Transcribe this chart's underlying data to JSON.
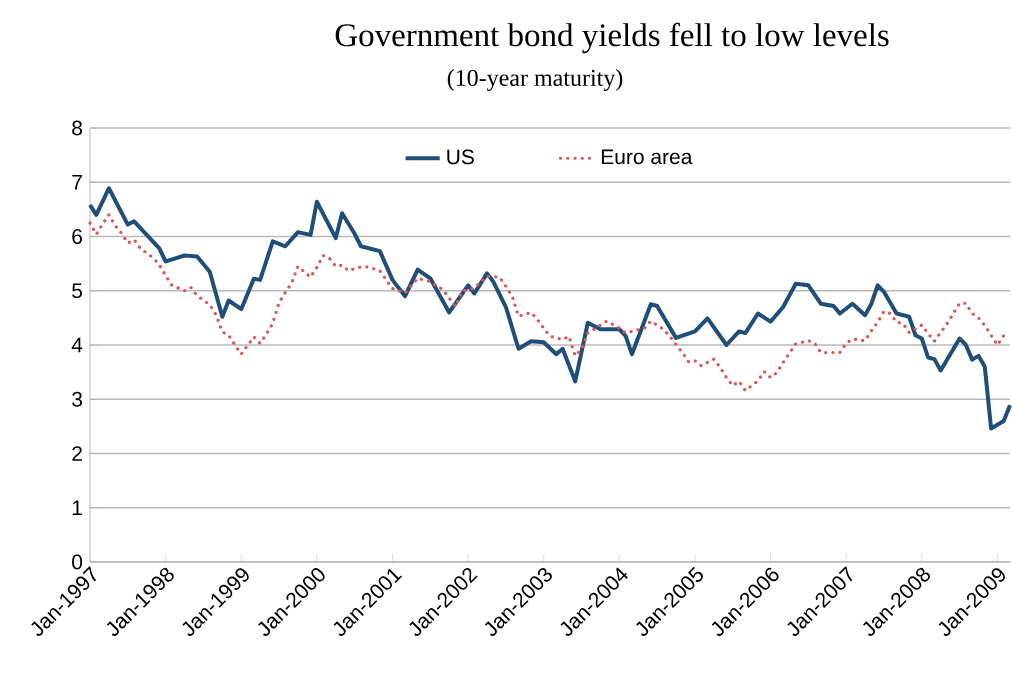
{
  "chart_data": {
    "type": "line",
    "title": "Government bond yields fell to low levels",
    "subtitle": "(10-year maturity)",
    "xlim": [
      "1997-01",
      "2009-03"
    ],
    "xticks": [
      {
        "value": "1997-01",
        "label": "Jan-1997"
      },
      {
        "value": "1998-01",
        "label": "Jan-1998"
      },
      {
        "value": "1999-01",
        "label": "Jan-1999"
      },
      {
        "value": "2000-01",
        "label": "Jan-2000"
      },
      {
        "value": "2001-01",
        "label": "Jan-2001"
      },
      {
        "value": "2002-01",
        "label": "Jan-2002"
      },
      {
        "value": "2003-01",
        "label": "Jan-2003"
      },
      {
        "value": "2004-01",
        "label": "Jan-2004"
      },
      {
        "value": "2005-01",
        "label": "Jan-2005"
      },
      {
        "value": "2006-01",
        "label": "Jan-2006"
      },
      {
        "value": "2007-01",
        "label": "Jan-2007"
      },
      {
        "value": "2008-01",
        "label": "Jan-2008"
      },
      {
        "value": "2009-01",
        "label": "Jan-2009"
      }
    ],
    "ylim": [
      0,
      8
    ],
    "yticks": [
      0,
      1,
      2,
      3,
      4,
      5,
      6,
      7,
      8
    ],
    "grid": "y",
    "legend": "top",
    "marker": "none",
    "series": [
      {
        "name": "US",
        "color": "#1f4e79",
        "line_style": "solid",
        "x": [
          "1997-01",
          "1997-02",
          "1997-04",
          "1997-07",
          "1997-08",
          "1997-12",
          "1998-01",
          "1998-04",
          "1998-06",
          "1998-08",
          "1998-10",
          "1998-11",
          "1999-01",
          "1999-03",
          "1999-04",
          "1999-06",
          "1999-08",
          "1999-10",
          "1999-12",
          "2000-01",
          "2000-04",
          "2000-05",
          "2000-07",
          "2000-08",
          "2000-11",
          "2001-01",
          "2001-03",
          "2001-05",
          "2001-07",
          "2001-10",
          "2002-01",
          "2002-02",
          "2002-04",
          "2002-05",
          "2002-07",
          "2002-09",
          "2002-11",
          "2003-01",
          "2003-03",
          "2003-04",
          "2003-06",
          "2003-08",
          "2003-10",
          "2004-01",
          "2004-02",
          "2004-03",
          "2004-06",
          "2004-07",
          "2004-10",
          "2005-01",
          "2005-03",
          "2005-06",
          "2005-08",
          "2005-09",
          "2005-11",
          "2006-01",
          "2006-03",
          "2006-05",
          "2006-07",
          "2006-09",
          "2006-11",
          "2006-12",
          "2007-02",
          "2007-04",
          "2007-05",
          "2007-06",
          "2007-07",
          "2007-09",
          "2007-11",
          "2007-12",
          "2008-01",
          "2008-02",
          "2008-03",
          "2008-04",
          "2008-07",
          "2008-08",
          "2008-09",
          "2008-10",
          "2008-11",
          "2008-12",
          "2009-02",
          "2009-03"
        ],
        "values": [
          6.58,
          6.4,
          6.89,
          6.22,
          6.28,
          5.78,
          5.54,
          5.65,
          5.63,
          5.35,
          4.52,
          4.82,
          4.66,
          5.22,
          5.2,
          5.91,
          5.82,
          6.08,
          6.03,
          6.64,
          5.97,
          6.43,
          6.05,
          5.82,
          5.73,
          5.2,
          4.9,
          5.39,
          5.23,
          4.6,
          5.1,
          4.95,
          5.32,
          5.17,
          4.7,
          3.93,
          4.07,
          4.05,
          3.83,
          3.93,
          3.33,
          4.41,
          4.29,
          4.29,
          4.17,
          3.83,
          4.75,
          4.72,
          4.13,
          4.25,
          4.49,
          4.0,
          4.25,
          4.22,
          4.58,
          4.43,
          4.7,
          5.13,
          5.1,
          4.76,
          4.72,
          4.58,
          4.76,
          4.55,
          4.76,
          5.1,
          4.98,
          4.58,
          4.52,
          4.18,
          4.12,
          3.77,
          3.74,
          3.53,
          4.12,
          4.0,
          3.73,
          3.8,
          3.6,
          2.46,
          2.6,
          2.89
        ]
      },
      {
        "name": "Euro area",
        "color": "#d9595c",
        "line_style": "dotted",
        "x": [
          "1997-01",
          "1997-02",
          "1997-03",
          "1997-04",
          "1997-05",
          "1997-06",
          "1997-07",
          "1997-08",
          "1997-09",
          "1997-11",
          "1997-12",
          "1998-01",
          "1998-02",
          "1998-04",
          "1998-05",
          "1998-06",
          "1998-08",
          "1998-09",
          "1998-10",
          "1998-11",
          "1998-12",
          "1999-01",
          "1999-02",
          "1999-03",
          "1999-04",
          "1999-05",
          "1999-06",
          "1999-07",
          "1999-08",
          "1999-09",
          "1999-10",
          "1999-12",
          "2000-01",
          "2000-02",
          "2000-03",
          "2000-04",
          "2000-05",
          "2000-06",
          "2000-08",
          "2000-09",
          "2000-11",
          "2000-12",
          "2001-01",
          "2001-03",
          "2001-05",
          "2001-07",
          "2001-09",
          "2001-11",
          "2001-12",
          "2002-02",
          "2002-04",
          "2002-06",
          "2002-07",
          "2002-08",
          "2002-09",
          "2002-11",
          "2002-12",
          "2003-01",
          "2003-02",
          "2003-04",
          "2003-05",
          "2003-06",
          "2003-07",
          "2003-08",
          "2003-09",
          "2003-11",
          "2004-01",
          "2004-02",
          "2004-05",
          "2004-06",
          "2004-08",
          "2004-09",
          "2004-10",
          "2004-11",
          "2004-12",
          "2005-01",
          "2005-02",
          "2005-04",
          "2005-05",
          "2005-06",
          "2005-07",
          "2005-08",
          "2005-09",
          "2005-11",
          "2005-12",
          "2006-01",
          "2006-02",
          "2006-03",
          "2006-04",
          "2006-05",
          "2006-07",
          "2006-08",
          "2006-09",
          "2006-11",
          "2006-12",
          "2007-01",
          "2007-02",
          "2007-04",
          "2007-05",
          "2007-06",
          "2007-07",
          "2007-08",
          "2007-09",
          "2007-10",
          "2007-11",
          "2008-01",
          "2008-02",
          "2008-03",
          "2008-04",
          "2008-05",
          "2008-06",
          "2008-07",
          "2008-08",
          "2008-09",
          "2008-10",
          "2008-11",
          "2008-12",
          "2009-01",
          "2009-02"
        ],
        "values": [
          6.25,
          6.04,
          6.23,
          6.4,
          6.2,
          6.06,
          5.88,
          5.94,
          5.78,
          5.61,
          5.48,
          5.28,
          5.1,
          5.0,
          5.06,
          4.91,
          4.74,
          4.56,
          4.24,
          4.18,
          4.0,
          3.83,
          3.99,
          4.15,
          4.03,
          4.2,
          4.4,
          4.78,
          4.97,
          5.14,
          5.45,
          5.25,
          5.43,
          5.65,
          5.6,
          5.45,
          5.47,
          5.37,
          5.44,
          5.44,
          5.37,
          5.2,
          5.04,
          4.96,
          5.23,
          5.17,
          5.02,
          4.71,
          4.99,
          5.05,
          5.27,
          5.25,
          5.08,
          4.9,
          4.53,
          4.6,
          4.47,
          4.31,
          4.16,
          4.1,
          4.16,
          3.8,
          3.92,
          4.22,
          4.29,
          4.44,
          4.31,
          4.22,
          4.31,
          4.44,
          4.29,
          4.16,
          4.01,
          3.86,
          3.69,
          3.71,
          3.62,
          3.74,
          3.59,
          3.4,
          3.25,
          3.33,
          3.16,
          3.34,
          3.51,
          3.4,
          3.49,
          3.68,
          3.85,
          4.02,
          4.08,
          4.03,
          3.86,
          3.86,
          3.86,
          4.03,
          4.11,
          4.08,
          4.26,
          4.42,
          4.62,
          4.58,
          4.42,
          4.4,
          4.23,
          4.37,
          4.21,
          4.07,
          4.23,
          4.39,
          4.58,
          4.77,
          4.77,
          4.58,
          4.5,
          4.36,
          4.18,
          4.0,
          4.17
        ]
      }
    ]
  }
}
